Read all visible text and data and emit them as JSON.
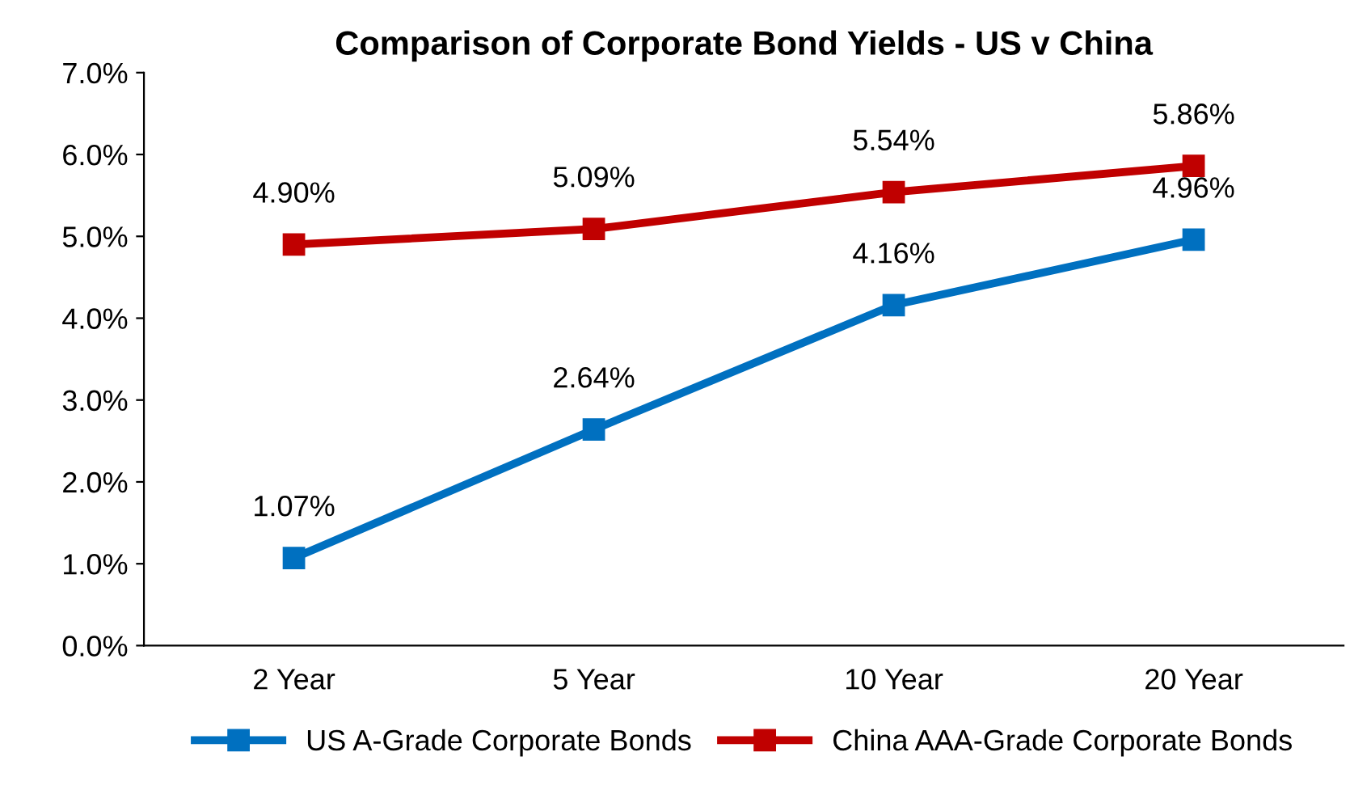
{
  "chart_data": {
    "type": "line",
    "title": "Comparison of Corporate Bond Yields - US v China",
    "categories": [
      "2 Year",
      "5 Year",
      "10 Year",
      "20 Year"
    ],
    "series": [
      {
        "name": "US A-Grade Corporate Bonds",
        "color": "#0070c0",
        "values": [
          1.07,
          2.64,
          4.16,
          4.96
        ],
        "value_labels": [
          "1.07%",
          "2.64%",
          "4.16%",
          "4.96%"
        ]
      },
      {
        "name": "China AAA-Grade Corporate Bonds",
        "color": "#c00000",
        "values": [
          4.9,
          5.09,
          5.54,
          5.86
        ],
        "value_labels": [
          "4.90%",
          "5.09%",
          "5.54%",
          "5.86%"
        ]
      }
    ],
    "ylim": [
      0,
      7
    ],
    "yticks": [
      {
        "value": 0,
        "label": "0.0%"
      },
      {
        "value": 1,
        "label": "1.0%"
      },
      {
        "value": 2,
        "label": "2.0%"
      },
      {
        "value": 3,
        "label": "3.0%"
      },
      {
        "value": 4,
        "label": "4.0%"
      },
      {
        "value": 5,
        "label": "5.0%"
      },
      {
        "value": 6,
        "label": "6.0%"
      },
      {
        "value": 7,
        "label": "7.0%"
      }
    ],
    "marker": "square",
    "line_style": "solid",
    "legend": "bottom",
    "grid": false
  }
}
